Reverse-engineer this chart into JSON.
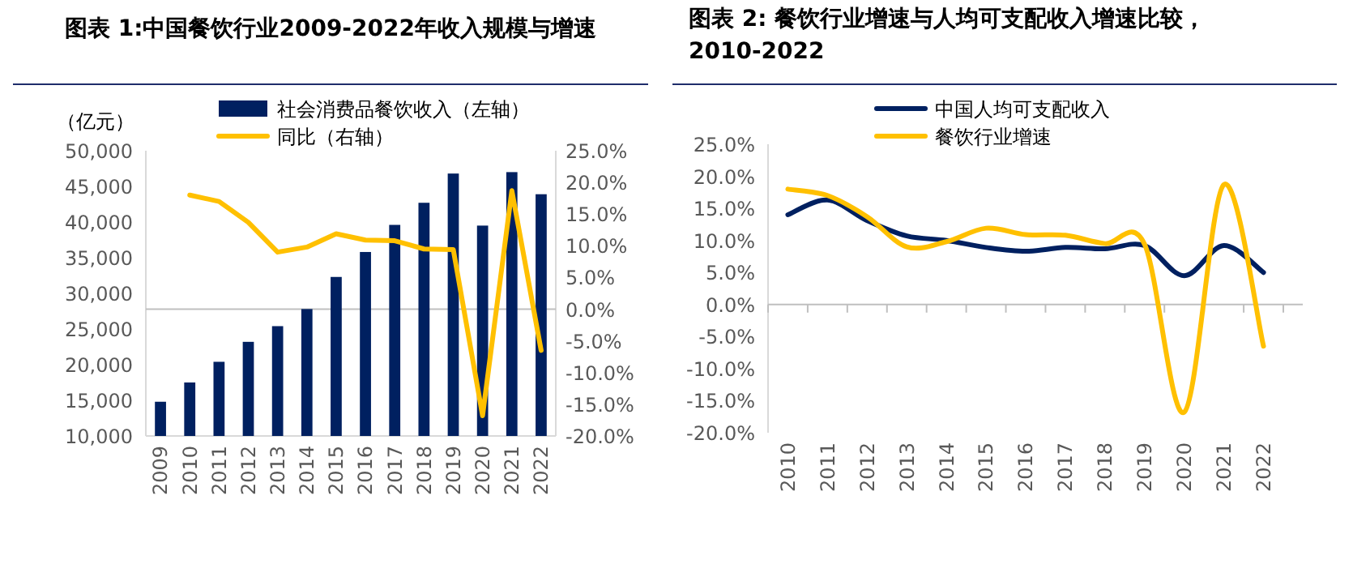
{
  "chart_data": [
    {
      "type": "bar",
      "title": "图表 1:中国餐饮行业2009-2022年收入规模与增速",
      "ylabel": "（亿元）",
      "categories": [
        "2009",
        "2010",
        "2011",
        "2012",
        "2013",
        "2014",
        "2015",
        "2016",
        "2017",
        "2018",
        "2019",
        "2020",
        "2021",
        "2022"
      ],
      "series": [
        {
          "name": "社会消费品餐饮收入（左轴）",
          "color": "#002060",
          "values": [
            14800,
            17500,
            20400,
            23200,
            25400,
            27800,
            32300,
            35800,
            39600,
            42700,
            46800,
            39500,
            47000,
            43900
          ]
        },
        {
          "name": "同比（右轴）",
          "type": "line",
          "axis": "y2",
          "color": "#ffc000",
          "values": [
            null,
            18.0,
            17.0,
            13.7,
            9.0,
            9.8,
            11.9,
            10.9,
            10.8,
            9.5,
            9.4,
            -16.8,
            18.7,
            -6.5
          ]
        }
      ],
      "ylim": [
        10000,
        50000
      ],
      "yticks": [
        {
          "value": 10000,
          "label": "10,000"
        },
        {
          "value": 15000,
          "label": "15,000"
        },
        {
          "value": 20000,
          "label": "20,000"
        },
        {
          "value": 25000,
          "label": "25,000"
        },
        {
          "value": 30000,
          "label": "30,000"
        },
        {
          "value": 35000,
          "label": "35,000"
        },
        {
          "value": 40000,
          "label": "40,000"
        },
        {
          "value": 45000,
          "label": "45,000"
        },
        {
          "value": 50000,
          "label": "50,000"
        }
      ],
      "y2lim": [
        -20,
        25
      ],
      "y2ticks": [
        {
          "value": -20,
          "label": "-20.0%"
        },
        {
          "value": -15,
          "label": "-15.0%"
        },
        {
          "value": -10,
          "label": "-10.0%"
        },
        {
          "value": -5,
          "label": "-5.0%"
        },
        {
          "value": 0,
          "label": "0.0%"
        },
        {
          "value": 5,
          "label": "5.0%"
        },
        {
          "value": 10,
          "label": "10.0%"
        },
        {
          "value": 15,
          "label": "15.0%"
        },
        {
          "value": 20,
          "label": "20.0%"
        },
        {
          "value": 25,
          "label": "25.0%"
        }
      ],
      "legend": "top"
    },
    {
      "type": "line",
      "title": "图表 2: 餐饮行业增速与人均可支配收入增速比较，2010-2022",
      "categories": [
        "2010",
        "2011",
        "2012",
        "2013",
        "2014",
        "2015",
        "2016",
        "2017",
        "2018",
        "2019",
        "2020",
        "2021",
        "2022"
      ],
      "series": [
        {
          "name": "中国人均可支配收入",
          "color": "#002060",
          "values": [
            14.0,
            16.3,
            13.1,
            10.7,
            10.0,
            8.9,
            8.3,
            8.9,
            8.7,
            9.2,
            4.5,
            9.2,
            5.0
          ]
        },
        {
          "name": "餐饮行业增速",
          "color": "#ffc000",
          "values": [
            18.0,
            17.0,
            13.7,
            9.0,
            9.8,
            11.9,
            10.9,
            10.8,
            9.5,
            9.4,
            -16.8,
            18.7,
            -6.5
          ]
        }
      ],
      "ylim": [
        -20,
        25
      ],
      "yticks": [
        {
          "value": -20,
          "label": "-20.0%"
        },
        {
          "value": -15,
          "label": "-15.0%"
        },
        {
          "value": -10,
          "label": "-10.0%"
        },
        {
          "value": -5,
          "label": "-5.0%"
        },
        {
          "value": 0,
          "label": "0.0%"
        },
        {
          "value": 5,
          "label": "5.0%"
        },
        {
          "value": 10,
          "label": "10.0%"
        },
        {
          "value": 15,
          "label": "15.0%"
        },
        {
          "value": 20,
          "label": "20.0%"
        },
        {
          "value": 25,
          "label": "25.0%"
        }
      ],
      "legend": "top"
    }
  ]
}
